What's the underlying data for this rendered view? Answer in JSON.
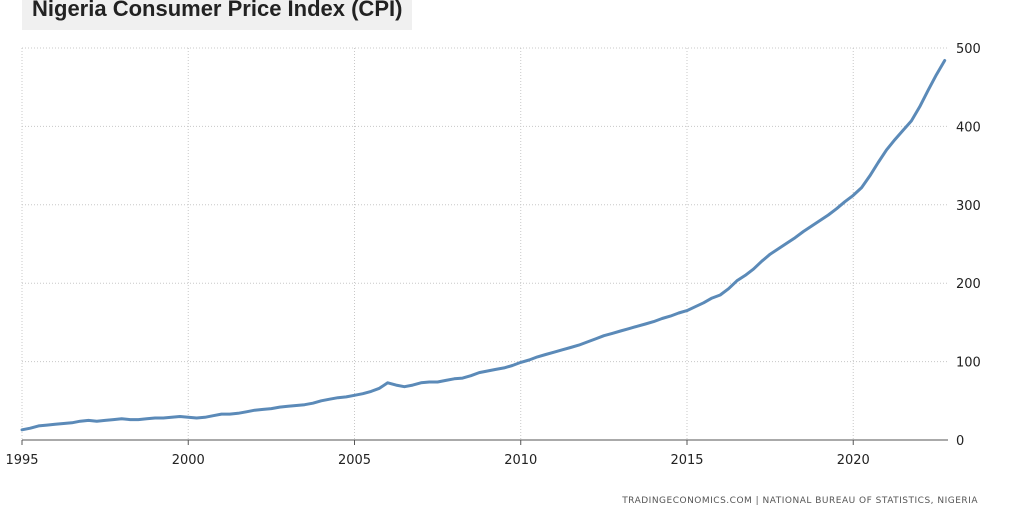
{
  "header": {
    "title": "Nigeria Consumer Price Index (CPI)"
  },
  "footer": {
    "source": "TRADINGECONOMICS.COM  |  NATIONAL BUREAU OF STATISTICS, NIGERIA"
  },
  "colors": {
    "line": "#5b8ab8",
    "grid": "#c8c8c8",
    "axis": "#555555",
    "text": "#222222"
  },
  "chart_data": {
    "type": "line",
    "title": "Nigeria Consumer Price Index (CPI)",
    "xlabel": "",
    "ylabel": "",
    "xlim": [
      1995,
      2022.85
    ],
    "ylim": [
      0,
      500
    ],
    "grid": true,
    "y_axis_position": "right",
    "x_ticks": [
      1995,
      2000,
      2005,
      2010,
      2015,
      2020
    ],
    "x_tick_labels": [
      "1995",
      "2000",
      "2005",
      "2010",
      "2015",
      "2020"
    ],
    "y_ticks": [
      0,
      100,
      200,
      300,
      400,
      500
    ],
    "y_tick_labels": [
      "0",
      "100",
      "200",
      "300",
      "400",
      "500"
    ],
    "series": [
      {
        "x": [
          1995.0,
          1995.25,
          1995.5,
          1995.75,
          1996.0,
          1996.25,
          1996.5,
          1996.75,
          1997.0,
          1997.25,
          1997.5,
          1997.75,
          1998.0,
          1998.25,
          1998.5,
          1998.75,
          1999.0,
          1999.25,
          1999.5,
          1999.75,
          2000.0,
          2000.25,
          2000.5,
          2000.75,
          2001.0,
          2001.25,
          2001.5,
          2001.75,
          2002.0,
          2002.25,
          2002.5,
          2002.75,
          2003.0,
          2003.25,
          2003.5,
          2003.75,
          2004.0,
          2004.25,
          2004.5,
          2004.75,
          2005.0,
          2005.25,
          2005.5,
          2005.75,
          2006.0,
          2006.25,
          2006.5,
          2006.75,
          2007.0,
          2007.25,
          2007.5,
          2007.75,
          2008.0,
          2008.25,
          2008.5,
          2008.75,
          2009.0,
          2009.25,
          2009.5,
          2009.75,
          2010.0,
          2010.25,
          2010.5,
          2010.75,
          2011.0,
          2011.25,
          2011.5,
          2011.75,
          2012.0,
          2012.25,
          2012.5,
          2012.75,
          2013.0,
          2013.25,
          2013.5,
          2013.75,
          2014.0,
          2014.25,
          2014.5,
          2014.75,
          2015.0,
          2015.25,
          2015.5,
          2015.75,
          2016.0,
          2016.25,
          2016.5,
          2016.75,
          2017.0,
          2017.25,
          2017.5,
          2017.75,
          2018.0,
          2018.25,
          2018.5,
          2018.75,
          2019.0,
          2019.25,
          2019.5,
          2019.75,
          2020.0,
          2020.25,
          2020.5,
          2020.75,
          2021.0,
          2021.25,
          2021.5,
          2021.75,
          2022.0,
          2022.25,
          2022.5,
          2022.75
        ],
        "values": [
          13,
          15,
          18,
          19,
          20,
          21,
          22,
          24,
          25,
          24,
          25,
          26,
          27,
          26,
          26,
          27,
          28,
          28,
          29,
          30,
          29,
          28,
          29,
          31,
          33,
          33,
          34,
          36,
          38,
          39,
          40,
          42,
          43,
          44,
          45,
          47,
          50,
          52,
          54,
          55,
          57,
          59,
          62,
          66,
          73,
          70,
          68,
          70,
          73,
          74,
          74,
          76,
          78,
          79,
          82,
          86,
          88,
          90,
          92,
          95,
          99,
          102,
          106,
          109,
          112,
          115,
          118,
          121,
          125,
          129,
          133,
          136,
          139,
          142,
          145,
          148,
          151,
          155,
          158,
          162,
          165,
          170,
          175,
          181,
          185,
          193,
          203,
          210,
          218,
          228,
          237,
          244,
          251,
          258,
          266,
          273,
          280,
          287,
          295,
          304,
          312,
          322,
          337,
          354,
          370,
          383,
          395,
          407,
          425,
          446,
          466,
          484
        ]
      }
    ]
  }
}
